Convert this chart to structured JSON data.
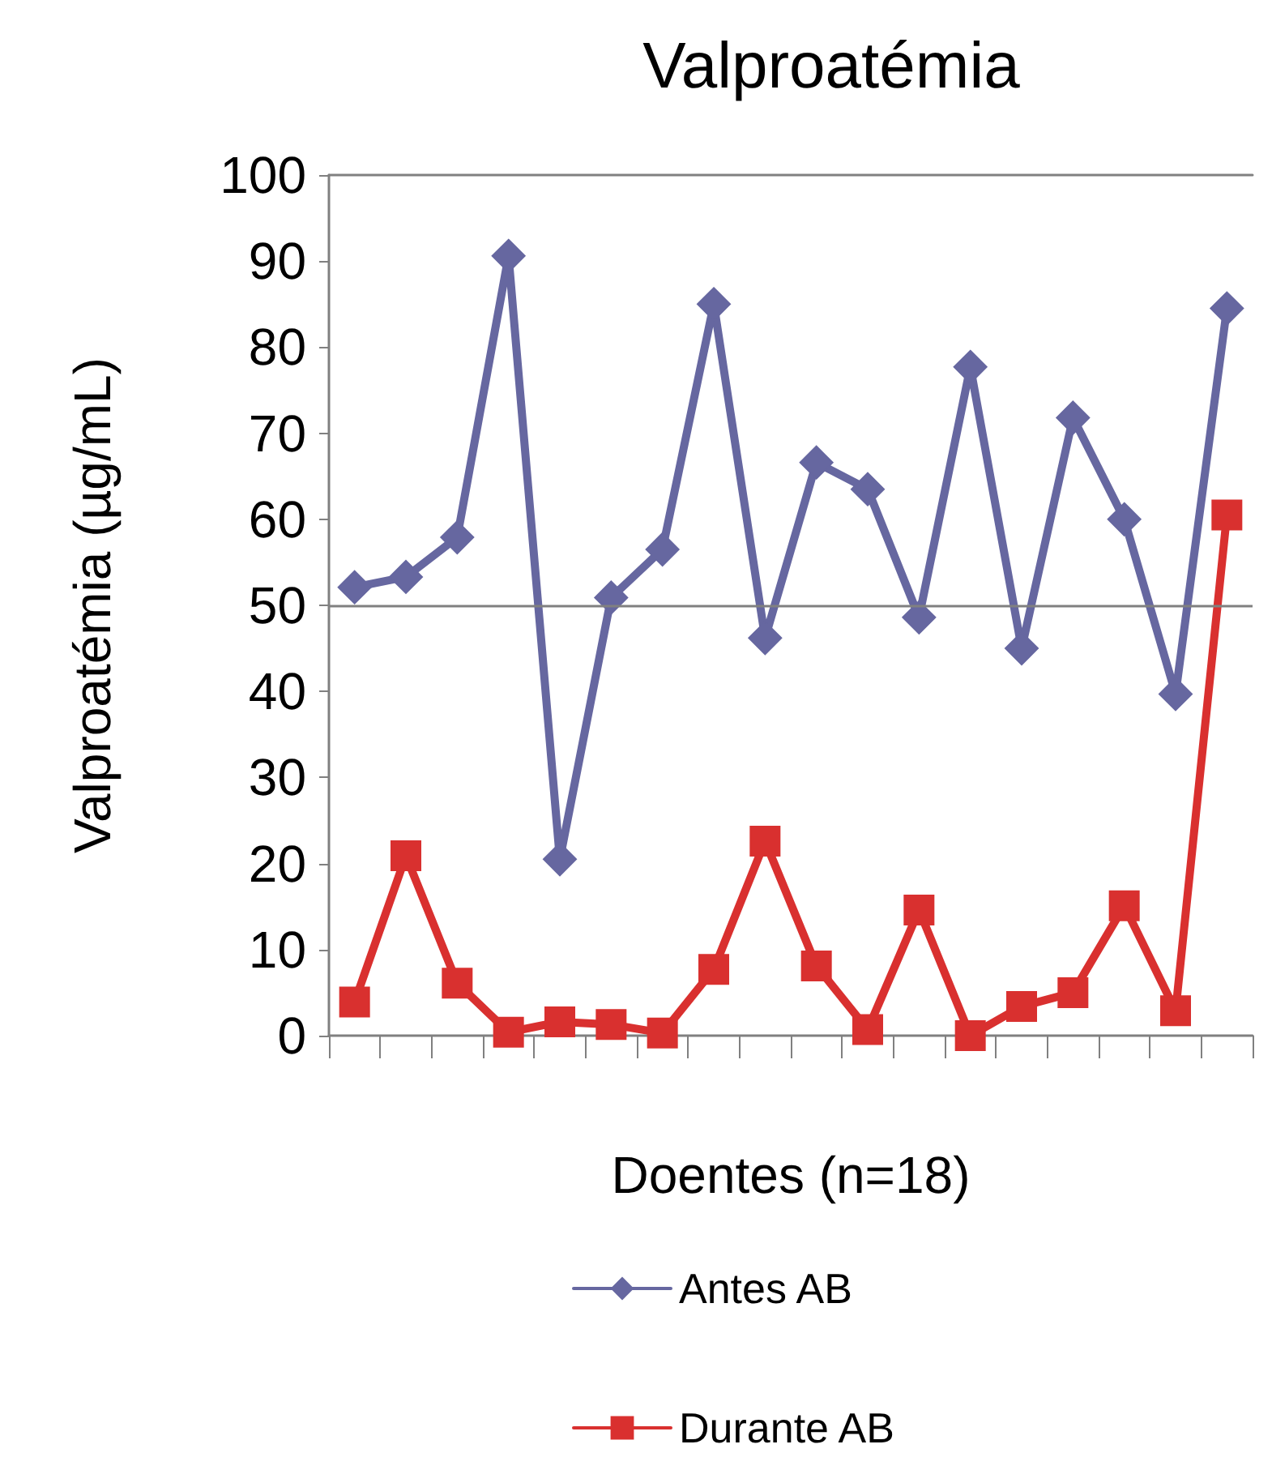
{
  "chart_data": {
    "type": "line",
    "title": "Valproatémia",
    "xlabel": "Doentes (n=18)",
    "ylabel": "Valproatémia (µg/mL)",
    "categories": [
      null,
      null,
      null,
      null,
      null,
      null,
      null,
      null,
      null,
      null,
      null,
      null,
      null,
      null,
      null,
      null,
      null,
      null
    ],
    "series": [
      {
        "name": "Antes AB",
        "color": "#6667a0",
        "marker": "diamond",
        "values": [
          52.1,
          53.3,
          57.9,
          90.6,
          20.5,
          50.9,
          56.5,
          85,
          46.2,
          66.6,
          63.5,
          48.6,
          77.7,
          45,
          71.8,
          60,
          39.7,
          84.5
        ]
      },
      {
        "name": "Durante AB",
        "color": "#d9302f",
        "marker": "square",
        "values": [
          3.9,
          20.9,
          6.1,
          0.4,
          1.6,
          1.3,
          0.3,
          7.7,
          22.6,
          8.1,
          0.7,
          14.6,
          0,
          3.4,
          5,
          15.1,
          2.9,
          60.5
        ]
      }
    ],
    "ylim": [
      0,
      100
    ],
    "yticks": [
      0,
      10,
      20,
      30,
      40,
      50,
      60,
      70,
      80,
      90,
      100
    ],
    "ref_lines": [
      {
        "axis": "y",
        "value": 50,
        "color": "#808080"
      }
    ],
    "grid": false,
    "legend": "bottom",
    "line_style": "solid"
  }
}
